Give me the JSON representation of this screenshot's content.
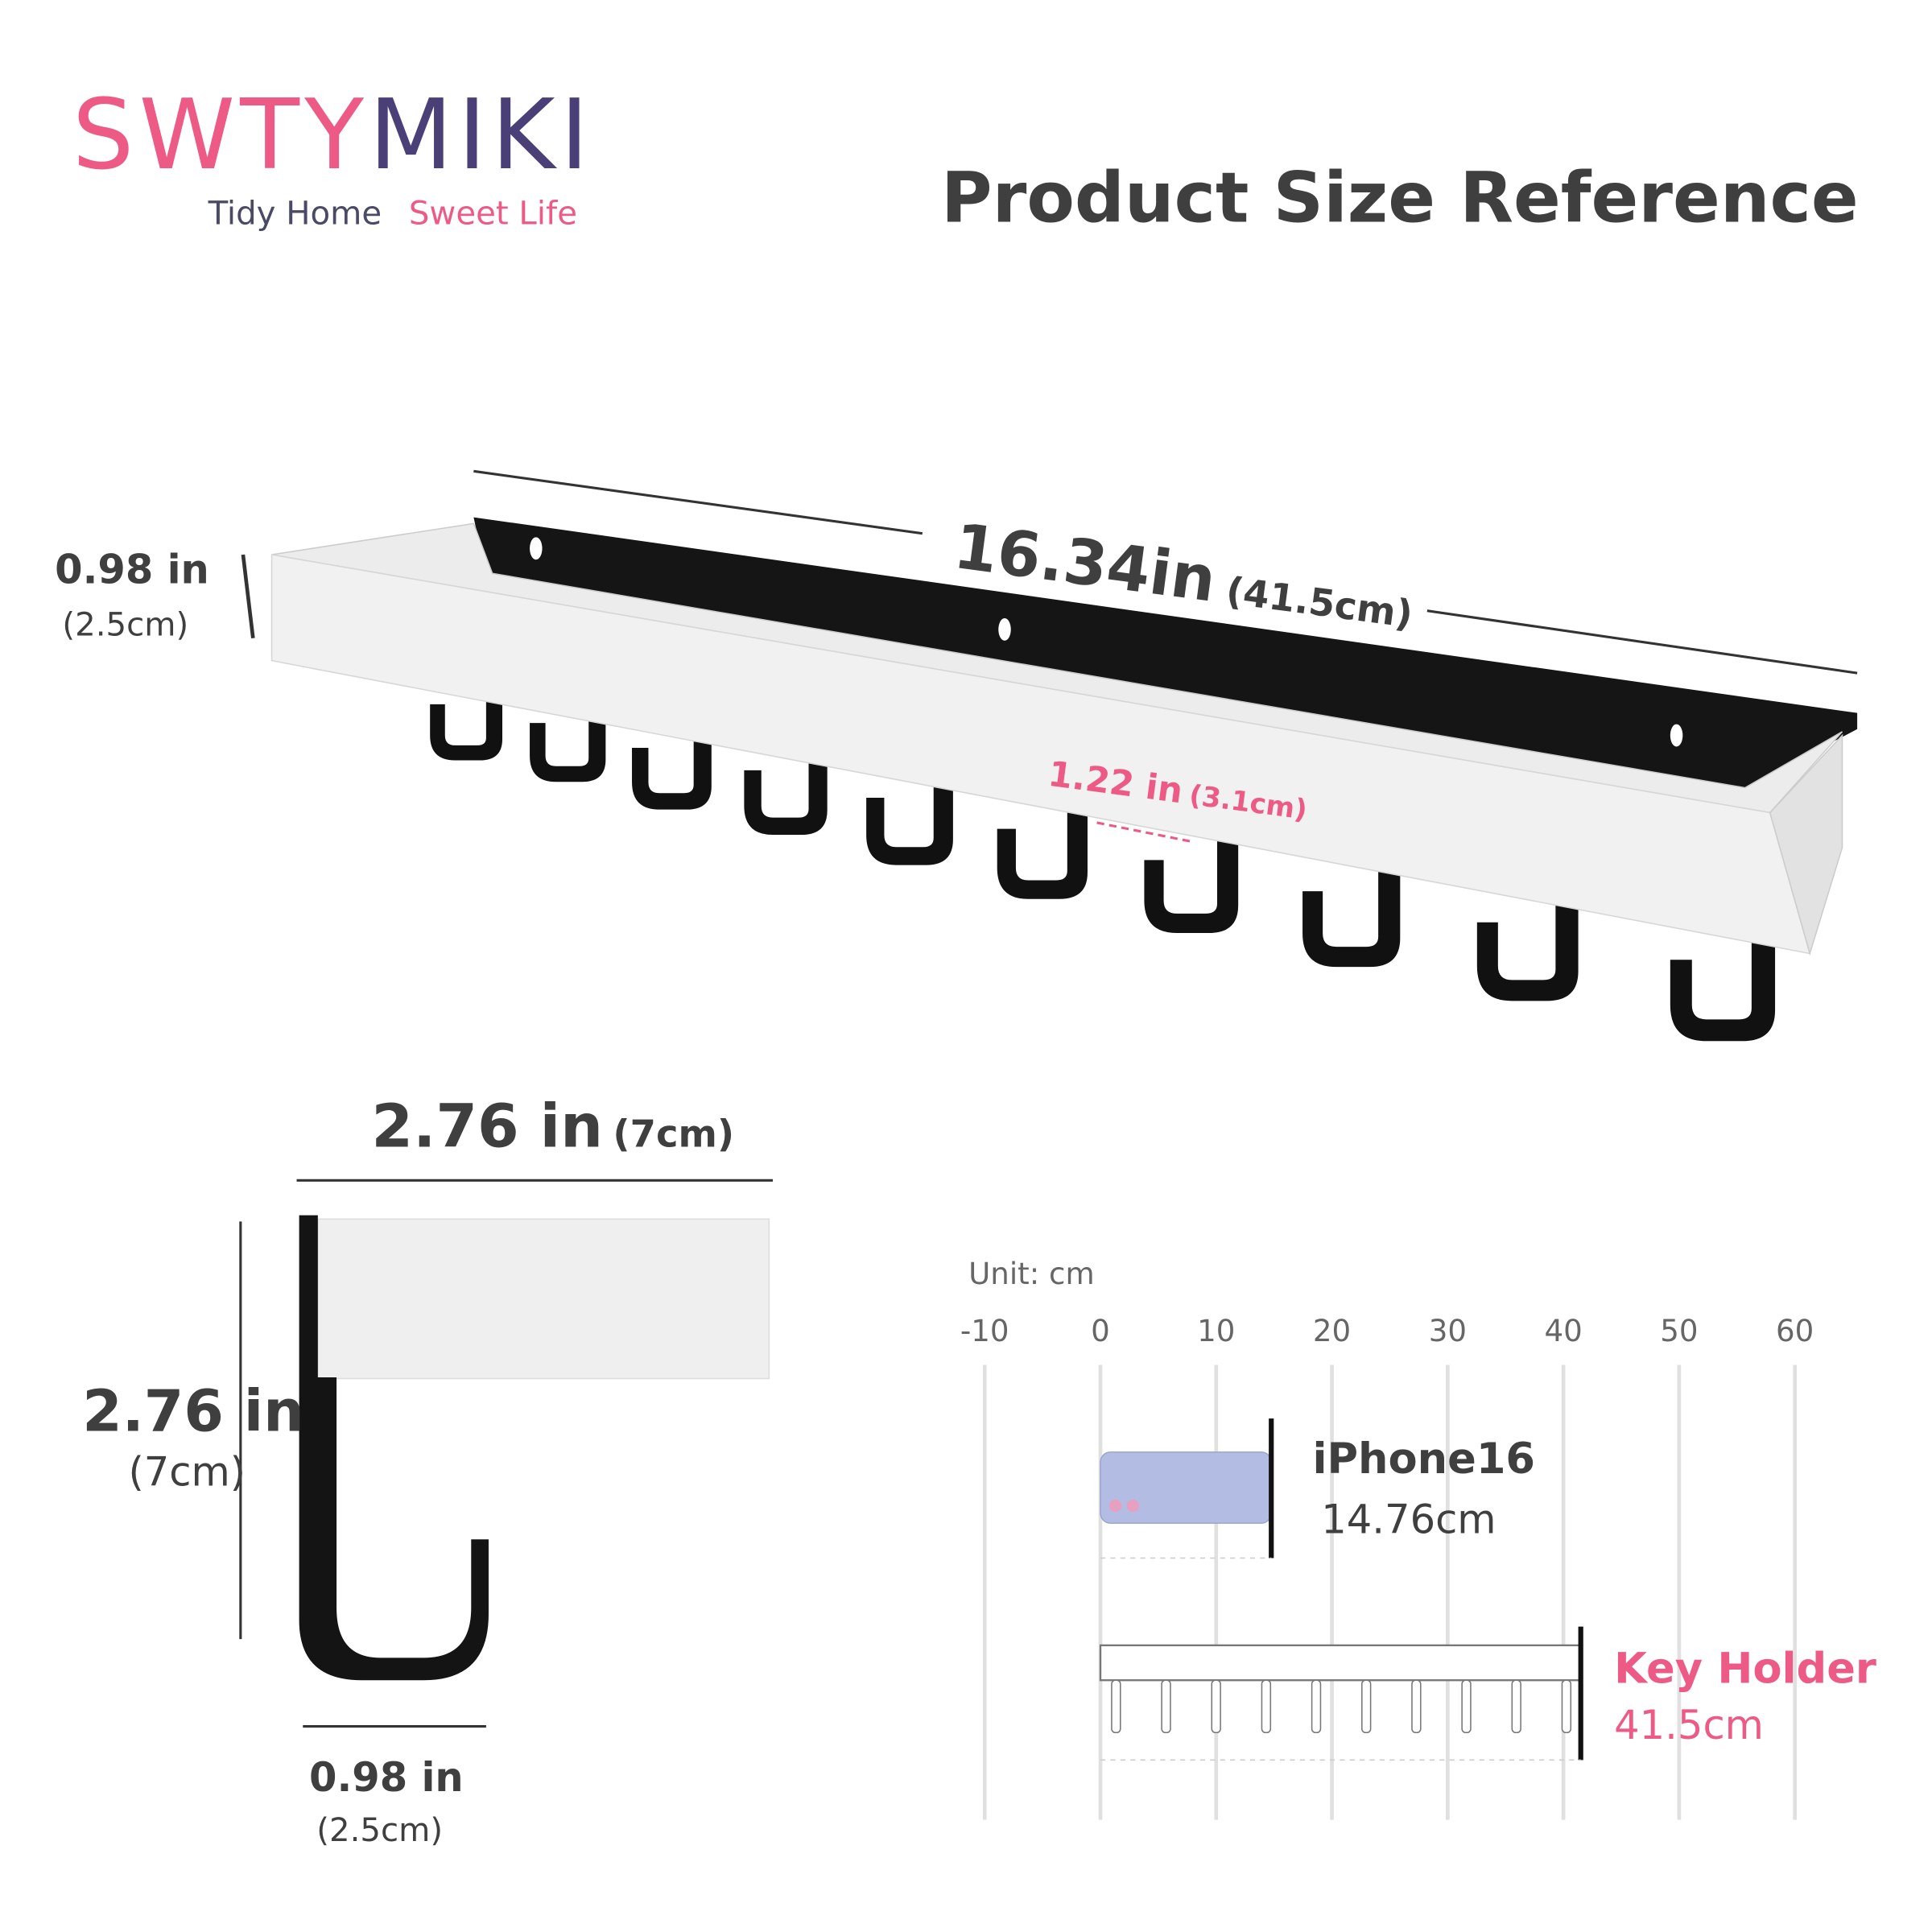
{
  "brand": {
    "name_part1": "SWTY",
    "name_part2": "MIKI",
    "tagline_part1": "Tidy Home",
    "tagline_part2": "Sweet Life"
  },
  "title": "Product Size Reference",
  "main_view": {
    "length": "16.34in",
    "length_metric": "(41.5cm)",
    "height": "0.98 in",
    "height_metric": "(2.5cm)",
    "hook_spacing": "1.22 in",
    "hook_spacing_metric": "(3.1cm)"
  },
  "side_view": {
    "depth": "2.76 in",
    "depth_metric": "(7cm)",
    "hook_height": "2.76 in",
    "hook_height_metric": "(7cm)",
    "hook_width": "0.98 in",
    "hook_width_metric": "(2.5cm)"
  },
  "ruler": {
    "unit_label": "Unit: cm",
    "ticks": [
      -10,
      0,
      10,
      20,
      30,
      40,
      50,
      60
    ],
    "items": [
      {
        "name": "iPhone16",
        "length": {
          "value": 14.76,
          "label": "14.76cm"
        }
      },
      {
        "name": "Key Holder",
        "length": {
          "value": 41.5,
          "label": "41.5cm"
        }
      }
    ]
  }
}
